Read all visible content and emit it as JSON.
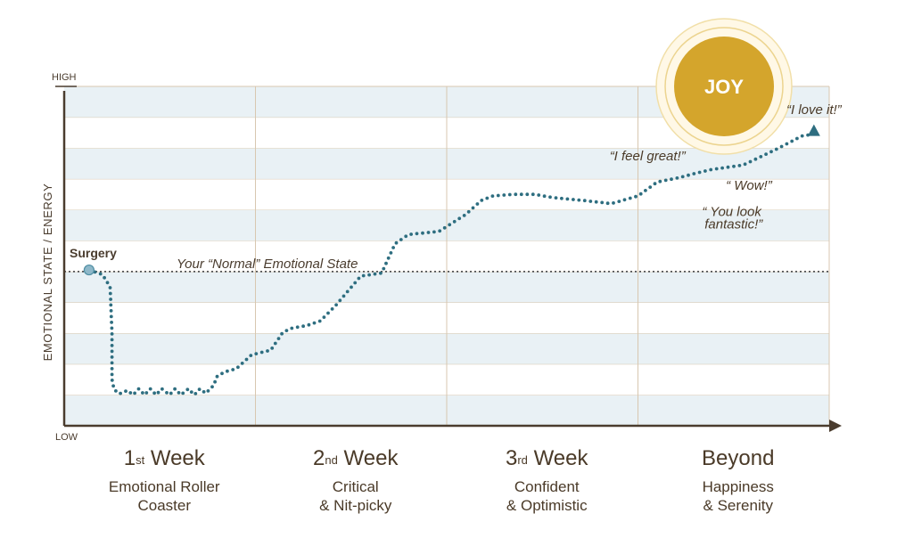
{
  "chart_data": {
    "type": "line",
    "ylabel": "EMOTIONAL STATE / ENERGY",
    "y_high_label": "HIGH",
    "y_low_label": "LOW",
    "ylim": [
      0,
      11
    ],
    "xlim": [
      0,
      4
    ],
    "grid": true,
    "bands": 11,
    "baseline": {
      "label": "Your “Normal” Emotional State",
      "value": 5
    },
    "start_label": "Surgery",
    "phases": [
      {
        "ord": "1",
        "sup": "st",
        "word": " Week",
        "line1": "Emotional Roller",
        "line2": "Coaster"
      },
      {
        "ord": "2",
        "sup": "nd",
        "word": " Week",
        "line1": "Critical",
        "line2": "& Nit-picky"
      },
      {
        "ord": "3",
        "sup": "rd",
        "word": " Week",
        "line1": "Confident",
        "line2": "& Optimistic"
      },
      {
        "ord": "Beyond",
        "sup": "",
        "word": "",
        "line1": "Happiness",
        "line2": "& Serenity"
      }
    ],
    "series": [
      {
        "x": [
          0.13,
          0.2,
          0.24,
          0.25,
          0.25,
          0.26,
          0.28,
          0.3,
          0.33,
          0.36,
          0.39,
          0.42,
          0.45,
          0.48,
          0.51,
          0.55,
          0.58,
          0.61,
          0.65,
          0.68,
          0.71,
          0.74,
          0.78,
          0.8,
          0.84,
          0.9,
          0.98,
          1.08,
          1.14,
          1.18,
          1.27,
          1.34,
          1.42,
          1.55,
          1.66,
          1.73,
          1.8,
          1.96,
          2.1,
          2.18,
          2.24,
          2.35,
          2.46,
          2.55,
          2.72,
          2.86,
          3.0,
          3.1,
          3.22,
          3.28,
          3.38,
          3.55,
          3.72,
          3.86,
          3.92
        ],
        "y": [
          5.05,
          4.9,
          4.5,
          3.0,
          1.5,
          1.2,
          1.05,
          1.05,
          1.15,
          1.0,
          1.2,
          1.0,
          1.2,
          1.0,
          1.2,
          1.0,
          1.2,
          1.0,
          1.2,
          1.0,
          1.2,
          1.05,
          1.3,
          1.6,
          1.75,
          1.85,
          2.3,
          2.45,
          3.0,
          3.15,
          3.25,
          3.4,
          3.9,
          4.85,
          4.95,
          5.9,
          6.2,
          6.3,
          6.85,
          7.3,
          7.45,
          7.5,
          7.5,
          7.4,
          7.3,
          7.2,
          7.45,
          7.9,
          8.05,
          8.15,
          8.3,
          8.45,
          8.95,
          9.4,
          9.45
        ]
      }
    ],
    "annotations": [
      {
        "text": "“I love it!”",
        "x": 3.92,
        "y": 10.1
      },
      {
        "text": "“I feel great!”",
        "x": 3.05,
        "y": 8.6
      },
      {
        "text": "“ Wow!”",
        "x": 3.58,
        "y": 7.65
      },
      {
        "text": "“ You look",
        "x": 3.49,
        "y": 6.8
      },
      {
        "text": "fantastic!”",
        "x": 3.5,
        "y": 6.4
      }
    ],
    "badge": {
      "text": "JOY",
      "x": 3.45,
      "y": 11.0
    }
  },
  "colors": {
    "band": "#e9f1f5",
    "gridline": "#d8c7b0",
    "axis": "#4a3c2e",
    "curve": "#2e6e80",
    "start_point": "#8eb8c9",
    "joy": "#d4a52c",
    "text": "#4a3a28"
  }
}
